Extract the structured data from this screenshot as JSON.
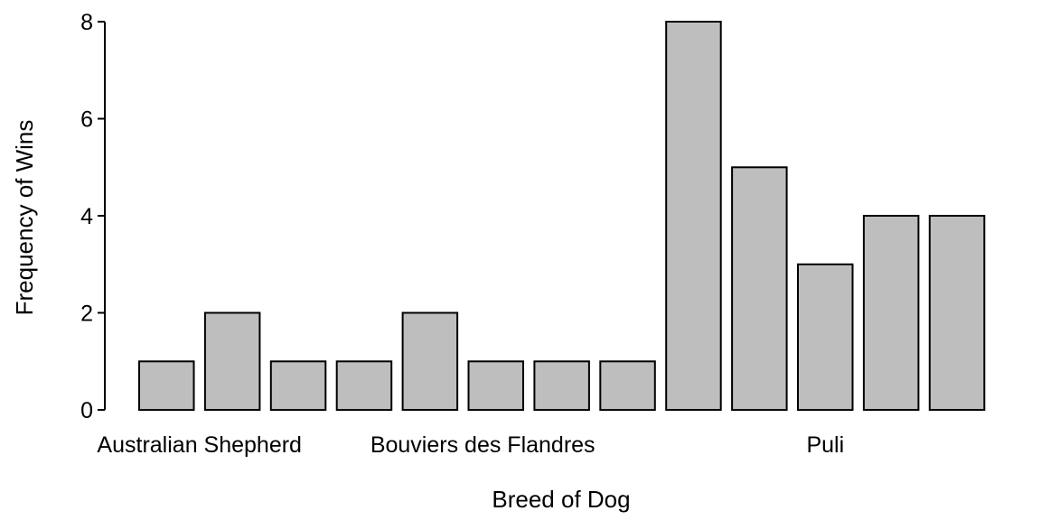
{
  "chart_data": {
    "type": "bar",
    "xlabel": "Breed of Dog",
    "ylabel": "Frequency of Wins",
    "ylim": [
      0,
      8
    ],
    "yticks": [
      0,
      2,
      4,
      6,
      8
    ],
    "categories": [
      "",
      "",
      "",
      "",
      "",
      "",
      "",
      "",
      "",
      "",
      "",
      "",
      ""
    ],
    "values": [
      1,
      2,
      1,
      1,
      2,
      1,
      1,
      1,
      8,
      5,
      3,
      4,
      4
    ],
    "bar_color": "#bebebe",
    "group_labels": [
      {
        "label": "Australian Shepherd",
        "center_index": 0.5
      },
      {
        "label": "Bouviers des Flandres",
        "center_index": 4.8
      },
      {
        "label": "Puli",
        "center_index": 10.0
      }
    ],
    "grid": false,
    "legend": "none"
  }
}
